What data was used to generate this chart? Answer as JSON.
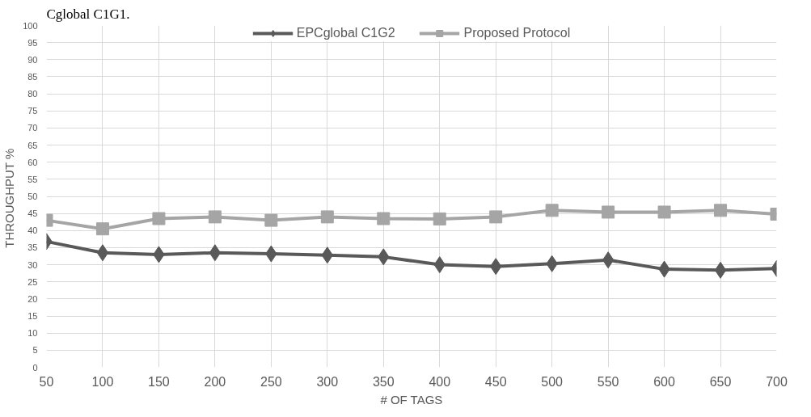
{
  "chart_data": {
    "type": "line",
    "xlabel": "# OF TAGS",
    "ylabel": "THROUGHPUT  %",
    "annotations": [
      "Cglobal C1G1."
    ],
    "categories": [
      "50",
      "100",
      "150",
      "200",
      "250",
      "300",
      "350",
      "400",
      "450",
      "500",
      "550",
      "600",
      "650",
      "700"
    ],
    "series": [
      {
        "name": "EPCglobal C1G2",
        "color": "#595959",
        "marker": "diamond",
        "values": [
          36.8,
          33.5,
          33,
          33.5,
          33.2,
          32.8,
          32.3,
          30,
          29.5,
          30.3,
          31.4,
          28.7,
          28.4,
          28.9
        ]
      },
      {
        "name": "Proposed Protocol",
        "color": "#a5a5a5",
        "marker": "square",
        "values": [
          43,
          40.5,
          43.5,
          44,
          43,
          44,
          43.5,
          43.4,
          44,
          45.9,
          45.4,
          45.4,
          45.9,
          44.8
        ]
      }
    ],
    "ylim": [
      0,
      100
    ],
    "yticks": [
      0,
      5,
      10,
      15,
      20,
      25,
      30,
      35,
      40,
      45,
      50,
      55,
      60,
      65,
      70,
      75,
      80,
      85,
      90,
      95,
      100
    ],
    "grid": true,
    "legend": "top",
    "line_style": "solid"
  }
}
